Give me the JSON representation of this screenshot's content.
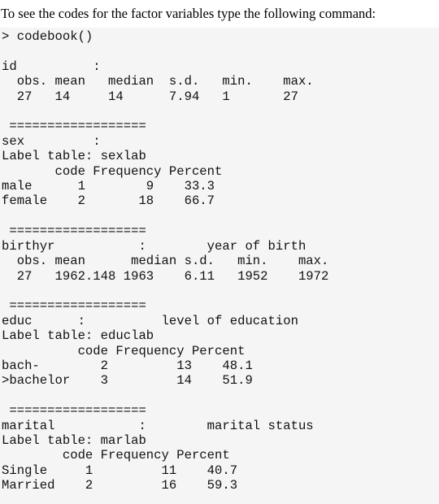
{
  "intro_text": "To see the codes for the factor variables type the following command:",
  "console_lines": [
    "> codebook()",
    "",
    "id          :",
    "  obs. mean   median  s.d.   min.    max.",
    "  27   14     14      7.94   1       27",
    "",
    " ==================",
    "sex         :",
    "Label table: sexlab",
    "       code Frequency Percent",
    "male      1        9    33.3",
    "female    2       18    66.7",
    "",
    " ==================",
    "birthyr           :        year of birth",
    "  obs. mean      median s.d.   min.    max.",
    "  27   1962.148 1963    6.11   1952    1972",
    "",
    " ==================",
    "educ      :          level of education",
    "Label table: educlab",
    "          code Frequency Percent",
    "bach-        2         13    48.1",
    ">bachelor    3         14    51.9",
    "",
    " ==================",
    "marital           :        marital status",
    "Label table: marlab",
    "        code Frequency Percent",
    "Single     1         11    40.7",
    "Married    2         16    59.3"
  ]
}
